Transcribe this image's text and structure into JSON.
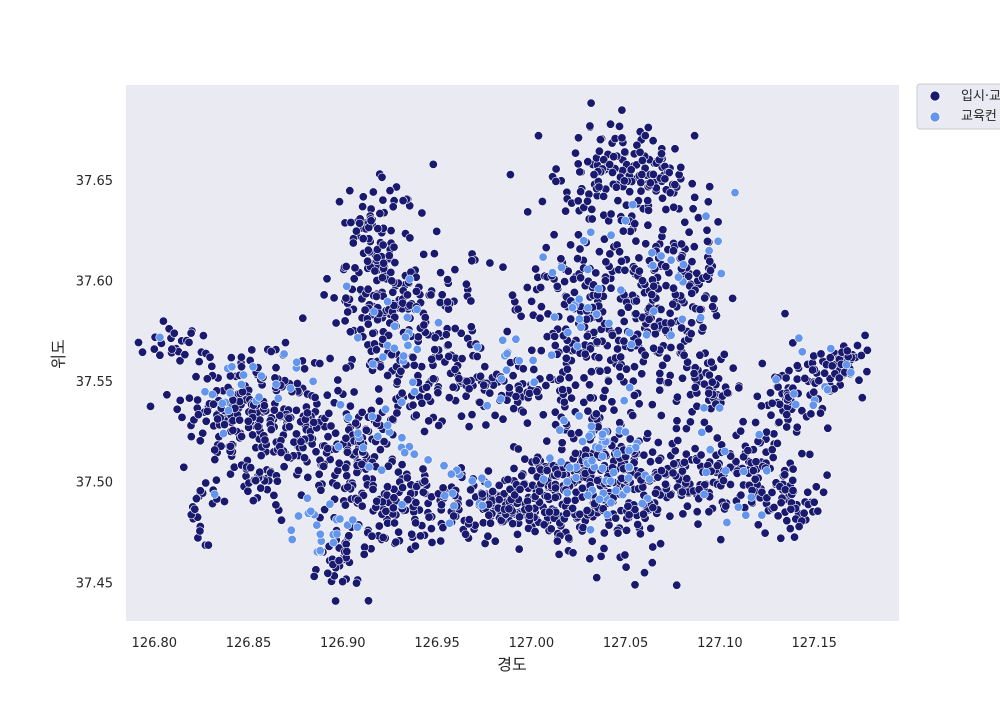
{
  "chart_data": {
    "type": "scatter",
    "title": "",
    "xlabel": "경도",
    "ylabel": "위도",
    "xlim": [
      126.785,
      127.195
    ],
    "ylim": [
      37.431,
      37.6975
    ],
    "xticks": [
      126.8,
      126.85,
      126.9,
      126.95,
      127.0,
      127.05,
      127.1,
      127.15
    ],
    "xtick_labels": [
      "126.80",
      "126.85",
      "126.90",
      "126.95",
      "127.00",
      "127.05",
      "127.10",
      "127.15"
    ],
    "yticks": [
      37.45,
      37.5,
      37.55,
      37.6,
      37.65
    ],
    "ytick_labels": [
      "37.45",
      "37.50",
      "37.55",
      "37.60",
      "37.65"
    ],
    "grid": false,
    "legend_position": "outside-top-right",
    "legend": [
      {
        "label": "입시·교",
        "color": "#191970"
      },
      {
        "label": "교육컨",
        "color": "#6495ED"
      }
    ],
    "series": [
      {
        "name": "입시·교",
        "color": "#191970",
        "clusters": [
          {
            "cx": 126.815,
            "cy": 37.57,
            "sx": 0.008,
            "sy": 0.005,
            "n": 25
          },
          {
            "cx": 126.845,
            "cy": 37.535,
            "sx": 0.016,
            "sy": 0.014,
            "n": 180
          },
          {
            "cx": 126.875,
            "cy": 37.53,
            "sx": 0.01,
            "sy": 0.012,
            "n": 70
          },
          {
            "cx": 126.825,
            "cy": 37.488,
            "sx": 0.006,
            "sy": 0.008,
            "n": 20
          },
          {
            "cx": 126.858,
            "cy": 37.5,
            "sx": 0.01,
            "sy": 0.008,
            "n": 30
          },
          {
            "cx": 126.905,
            "cy": 37.51,
            "sx": 0.016,
            "sy": 0.015,
            "n": 150
          },
          {
            "cx": 126.897,
            "cy": 37.462,
            "sx": 0.006,
            "sy": 0.01,
            "n": 35
          },
          {
            "cx": 126.935,
            "cy": 37.485,
            "sx": 0.014,
            "sy": 0.01,
            "n": 90
          },
          {
            "cx": 126.918,
            "cy": 37.59,
            "sx": 0.012,
            "sy": 0.022,
            "n": 160
          },
          {
            "cx": 126.92,
            "cy": 37.632,
            "sx": 0.01,
            "sy": 0.01,
            "n": 30
          },
          {
            "cx": 126.945,
            "cy": 37.56,
            "sx": 0.015,
            "sy": 0.015,
            "n": 110
          },
          {
            "cx": 126.955,
            "cy": 37.595,
            "sx": 0.012,
            "sy": 0.01,
            "n": 30
          },
          {
            "cx": 126.98,
            "cy": 37.545,
            "sx": 0.015,
            "sy": 0.008,
            "n": 60
          },
          {
            "cx": 126.985,
            "cy": 37.487,
            "sx": 0.018,
            "sy": 0.008,
            "n": 150
          },
          {
            "cx": 127.015,
            "cy": 37.5,
            "sx": 0.012,
            "sy": 0.015,
            "n": 110
          },
          {
            "cx": 127.045,
            "cy": 37.5,
            "sx": 0.018,
            "sy": 0.018,
            "n": 230
          },
          {
            "cx": 127.03,
            "cy": 37.58,
            "sx": 0.02,
            "sy": 0.025,
            "n": 230
          },
          {
            "cx": 127.04,
            "cy": 37.65,
            "sx": 0.014,
            "sy": 0.012,
            "n": 100
          },
          {
            "cx": 127.065,
            "cy": 37.65,
            "sx": 0.01,
            "sy": 0.012,
            "n": 60
          },
          {
            "cx": 127.06,
            "cy": 37.585,
            "sx": 0.012,
            "sy": 0.03,
            "n": 100
          },
          {
            "cx": 127.085,
            "cy": 37.59,
            "sx": 0.01,
            "sy": 0.03,
            "n": 100
          },
          {
            "cx": 127.095,
            "cy": 37.545,
            "sx": 0.008,
            "sy": 0.008,
            "n": 30
          },
          {
            "cx": 127.085,
            "cy": 37.5,
            "sx": 0.015,
            "sy": 0.008,
            "n": 70
          },
          {
            "cx": 127.115,
            "cy": 37.505,
            "sx": 0.015,
            "sy": 0.012,
            "n": 90
          },
          {
            "cx": 127.135,
            "cy": 37.49,
            "sx": 0.01,
            "sy": 0.008,
            "n": 40
          },
          {
            "cx": 127.14,
            "cy": 37.545,
            "sx": 0.015,
            "sy": 0.012,
            "n": 90
          },
          {
            "cx": 127.165,
            "cy": 37.557,
            "sx": 0.006,
            "sy": 0.006,
            "n": 25
          }
        ],
        "points": [
          [
            126.855,
            37.557
          ],
          [
            126.873,
            37.545
          ],
          [
            126.862,
            37.565
          ],
          [
            127.031,
            37.462
          ],
          [
            127.055,
            37.449
          ],
          [
            127.06,
            37.455
          ],
          [
            127.048,
            37.685
          ],
          [
            127.042,
            37.678
          ],
          [
            127.155,
            37.495
          ],
          [
            127.15,
            37.49
          ],
          [
            127.142,
            37.478
          ],
          [
            126.932,
            37.64
          ],
          [
            126.925,
            37.645
          ],
          [
            126.915,
            37.63
          ],
          [
            126.948,
            37.658
          ],
          [
            126.978,
            37.609
          ],
          [
            126.99,
            37.593
          ],
          [
            127.003,
            37.545
          ],
          [
            127.02,
            37.552
          ],
          [
            127.177,
            37.573
          ],
          [
            127.173,
            37.568
          ],
          [
            127.175,
            37.563
          ],
          [
            127.178,
            37.555
          ]
        ]
      },
      {
        "name": "교육컨",
        "color": "#6495ED",
        "clusters": [
          {
            "cx": 126.85,
            "cy": 37.545,
            "sx": 0.015,
            "sy": 0.012,
            "n": 22
          },
          {
            "cx": 126.89,
            "cy": 37.48,
            "sx": 0.008,
            "sy": 0.008,
            "n": 20
          },
          {
            "cx": 126.92,
            "cy": 37.52,
            "sx": 0.012,
            "sy": 0.01,
            "n": 18
          },
          {
            "cx": 126.925,
            "cy": 37.565,
            "sx": 0.012,
            "sy": 0.02,
            "n": 22
          },
          {
            "cx": 126.96,
            "cy": 37.5,
            "sx": 0.01,
            "sy": 0.01,
            "n": 15
          },
          {
            "cx": 126.99,
            "cy": 37.56,
            "sx": 0.012,
            "sy": 0.01,
            "n": 15
          },
          {
            "cx": 127.04,
            "cy": 37.51,
            "sx": 0.015,
            "sy": 0.015,
            "n": 60
          },
          {
            "cx": 127.03,
            "cy": 37.59,
            "sx": 0.02,
            "sy": 0.02,
            "n": 25
          },
          {
            "cx": 127.08,
            "cy": 37.6,
            "sx": 0.015,
            "sy": 0.02,
            "n": 15
          },
          {
            "cx": 127.11,
            "cy": 37.51,
            "sx": 0.015,
            "sy": 0.015,
            "n": 15
          },
          {
            "cx": 127.145,
            "cy": 37.55,
            "sx": 0.012,
            "sy": 0.01,
            "n": 12
          }
        ],
        "points": [
          [
            126.803,
            37.572
          ],
          [
            127.108,
            37.644
          ],
          [
            126.832,
            37.494
          ],
          [
            126.888,
            37.466
          ],
          [
            126.895,
            37.47
          ],
          [
            127.05,
            37.63
          ]
        ]
      }
    ]
  }
}
